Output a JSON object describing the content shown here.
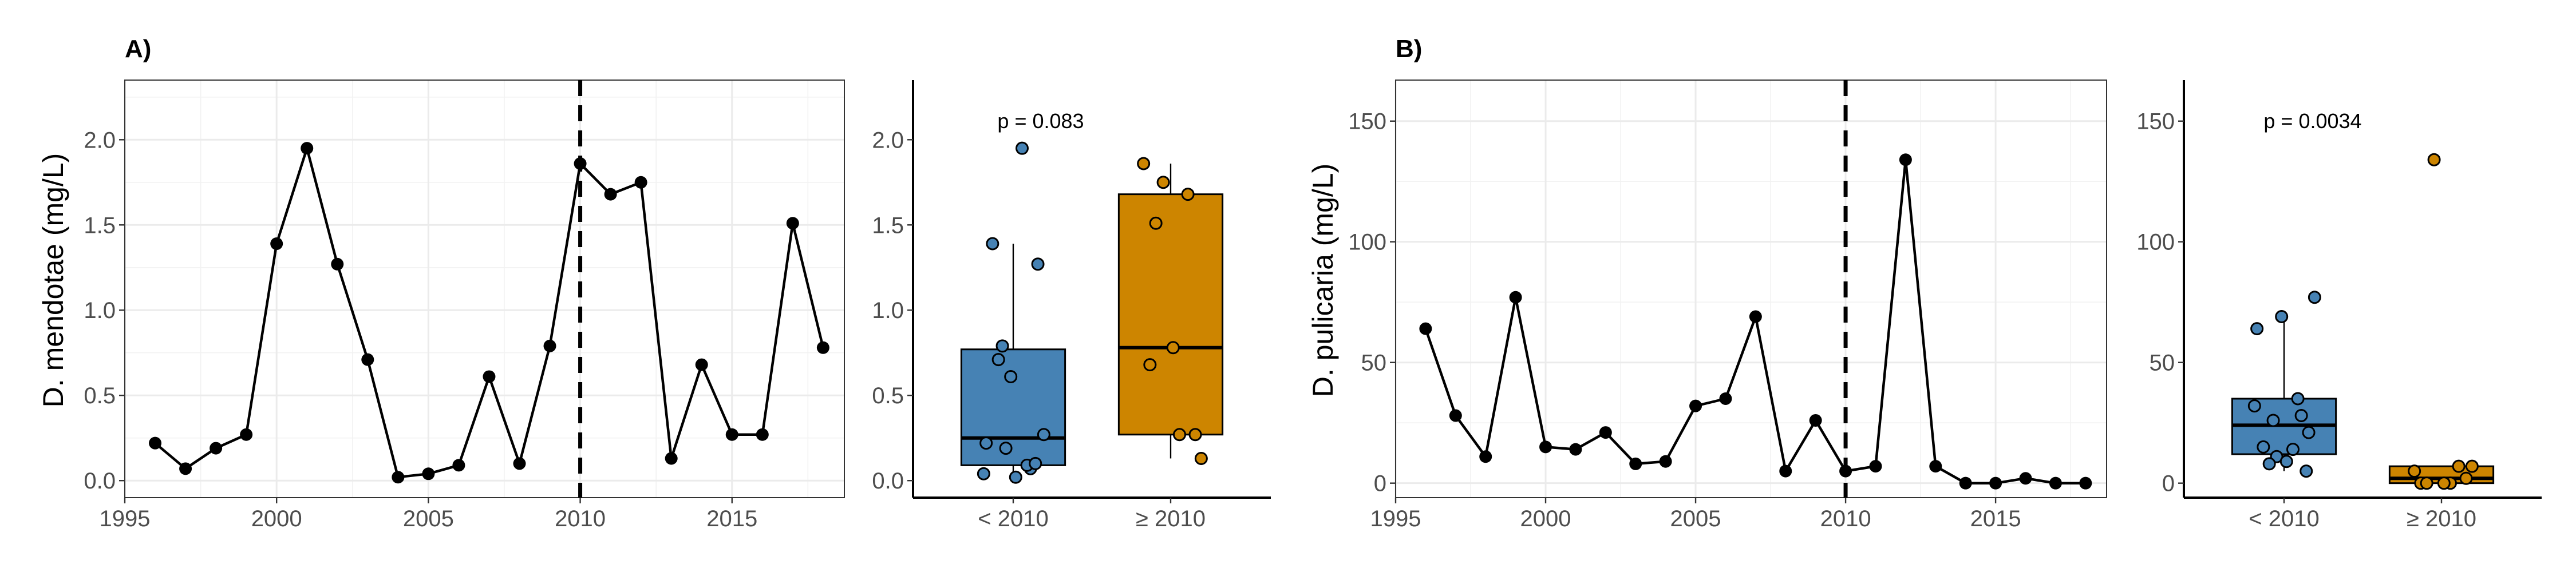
{
  "colors": {
    "before": "#4682b4",
    "after": "#cd8500",
    "series": "#000000"
  },
  "chart_data": [
    {
      "type": "line",
      "tag": "A)",
      "xlabel": "",
      "ylabel": "D. mendotae (mg/L)",
      "xlim": [
        1995,
        2018.7
      ],
      "ylim": [
        -0.1,
        2.35
      ],
      "xticks": [
        1995,
        2000,
        2005,
        2010,
        2015
      ],
      "yticks": [
        0.0,
        0.5,
        1.0,
        1.5,
        2.0
      ],
      "ytick_labels": [
        "0.0",
        "0.5",
        "1.0",
        "1.5",
        "2.0"
      ],
      "reference_line_x": 2010,
      "grid": true,
      "x": [
        1996,
        1997,
        1998,
        1999,
        2000,
        2001,
        2002,
        2003,
        2004,
        2005,
        2006,
        2007,
        2008,
        2009,
        2010,
        2011,
        2012,
        2013,
        2014,
        2015,
        2016,
        2017,
        2018
      ],
      "y": [
        0.22,
        0.07,
        0.19,
        0.27,
        1.39,
        1.95,
        1.27,
        0.71,
        0.02,
        0.04,
        0.09,
        0.61,
        0.1,
        0.79,
        1.86,
        1.68,
        1.75,
        0.13,
        0.68,
        0.27,
        0.27,
        1.51,
        0.78
      ]
    },
    {
      "type": "box",
      "ylim": [
        -0.1,
        2.35
      ],
      "yticks": [
        0.0,
        0.5,
        1.0,
        1.5,
        2.0
      ],
      "ytick_labels": [
        "0.0",
        "0.5",
        "1.0",
        "1.5",
        "2.0"
      ],
      "categories": [
        "< 2010",
        "≥ 2010"
      ],
      "annotation": "p = 0.083",
      "grid": false,
      "boxes": [
        {
          "q1": 0.09,
          "median": 0.25,
          "q3": 0.77,
          "whisker_low": 0.02,
          "whisker_high": 1.39,
          "outliers": [
            1.95
          ]
        },
        {
          "q1": 0.27,
          "median": 0.78,
          "q3": 1.68,
          "whisker_low": 0.13,
          "whisker_high": 1.86,
          "outliers": []
        }
      ],
      "points": [
        [
          0.22,
          0.07,
          0.19,
          0.27,
          1.39,
          1.95,
          1.27,
          0.71,
          0.02,
          0.04,
          0.09,
          0.61,
          0.1,
          0.79
        ],
        [
          1.86,
          1.68,
          1.75,
          0.13,
          0.68,
          0.27,
          0.27,
          1.51,
          0.78
        ]
      ]
    },
    {
      "type": "line",
      "tag": "B)",
      "xlabel": "",
      "ylabel": "D. pulicaria (mg/L)",
      "xlim": [
        1995,
        2018.7
      ],
      "ylim": [
        -6,
        167
      ],
      "xticks": [
        1995,
        2000,
        2005,
        2010,
        2015
      ],
      "yticks": [
        0,
        50,
        100,
        150
      ],
      "ytick_labels": [
        "0",
        "50",
        "100",
        "150"
      ],
      "reference_line_x": 2010,
      "grid": true,
      "x": [
        1996,
        1997,
        1998,
        1999,
        2000,
        2001,
        2002,
        2003,
        2004,
        2005,
        2006,
        2007,
        2008,
        2009,
        2010,
        2011,
        2012,
        2013,
        2014,
        2015,
        2016,
        2017,
        2018
      ],
      "y": [
        64,
        28,
        11,
        77,
        15,
        14,
        21,
        8,
        9,
        32,
        35,
        69,
        5,
        26,
        5,
        7,
        134,
        7,
        0,
        0,
        2,
        0,
        0
      ]
    },
    {
      "type": "box",
      "ylim": [
        -6,
        167
      ],
      "yticks": [
        0,
        50,
        100,
        150
      ],
      "ytick_labels": [
        "0",
        "50",
        "100",
        "150"
      ],
      "categories": [
        "< 2010",
        "≥ 2010"
      ],
      "annotation": "p = 0.0034",
      "grid": false,
      "boxes": [
        {
          "q1": 12,
          "median": 24,
          "q3": 35,
          "whisker_low": 5,
          "whisker_high": 69,
          "outliers": [
            77
          ]
        },
        {
          "q1": 0,
          "median": 2,
          "q3": 7,
          "whisker_low": 0,
          "whisker_high": 7,
          "outliers": [
            134
          ]
        }
      ],
      "points": [
        [
          64,
          28,
          11,
          77,
          15,
          14,
          21,
          8,
          9,
          32,
          35,
          69,
          5,
          26
        ],
        [
          5,
          7,
          134,
          7,
          0,
          0,
          2,
          0,
          0
        ]
      ]
    }
  ]
}
